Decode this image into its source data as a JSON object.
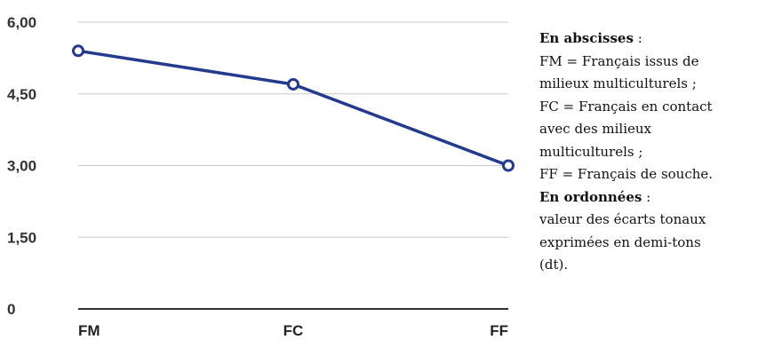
{
  "chart_data": {
    "type": "line",
    "categories": [
      "FM",
      "FC",
      "FF"
    ],
    "series": [
      {
        "values": [
          5.4,
          4.7,
          3.0
        ],
        "color": "#233a8f"
      }
    ],
    "yticks": [
      "0",
      "1,50",
      "3,00",
      "4,50",
      "6,00"
    ],
    "ylim": [
      0,
      6
    ],
    "grid": true,
    "title": "",
    "xlabel": "",
    "ylabel": ""
  },
  "legend": {
    "abscisses_heading": "En abscisses",
    "abscisses_sep": " :",
    "fm_1": "FM = Français issus de",
    "fm_2": "milieux multiculturels ;",
    "fc_1": "FC = Français en contact",
    "fc_2": "avec des milieux",
    "fc_3": "multiculturels ;",
    "ff_1": "FF = Français de souche.",
    "ordonnees_heading": "En ordonnées",
    "ordonnees_sep": " :",
    "ord_1": "valeur des écarts tonaux",
    "ord_2": "exprimées en demi-tons",
    "ord_3": "(dt)."
  }
}
